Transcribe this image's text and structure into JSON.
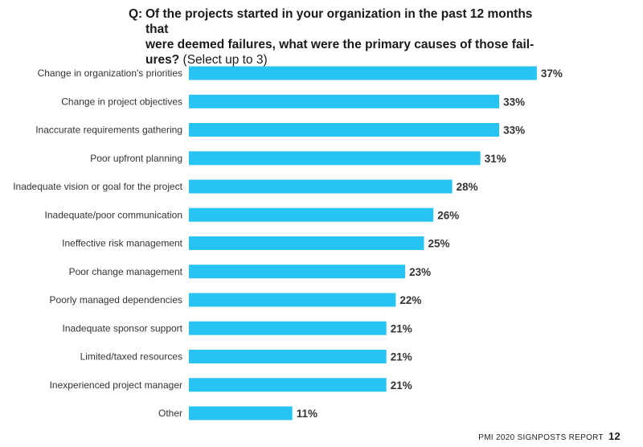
{
  "question": {
    "prefix": "Q:",
    "line1": "Of the projects started in your organization in the past 12 months that",
    "line2": "were deemed failures, what were the primary causes of those fail-",
    "line3": "ures?",
    "note": "(Select up to 3)"
  },
  "footer": {
    "report": "PMI 2020 SIGNPOSTS REPORT",
    "page": "12"
  },
  "colors": {
    "bar": "#27c3f3"
  },
  "chart_data": {
    "type": "bar",
    "orientation": "horizontal",
    "categories": [
      "Change in organization's priorities",
      "Change in project objectives",
      "Inaccurate requirements gathering",
      "Poor upfront planning",
      "Inadequate vision or goal for the project",
      "Inadequate/poor communication",
      "Ineffective risk management",
      "Poor change management",
      "Poorly managed dependencies",
      "Inadequate sponsor support",
      "Limited/taxed resources",
      "Inexperienced project manager",
      "Other"
    ],
    "values": [
      37,
      33,
      33,
      31,
      28,
      26,
      25,
      23,
      22,
      21,
      21,
      21,
      11
    ],
    "value_labels": [
      "37%",
      "33%",
      "33%",
      "31%",
      "28%",
      "26%",
      "25%",
      "23%",
      "22%",
      "21%",
      "21%",
      "21%",
      "11%"
    ],
    "unit": "%",
    "grid": false,
    "legend": "none"
  }
}
